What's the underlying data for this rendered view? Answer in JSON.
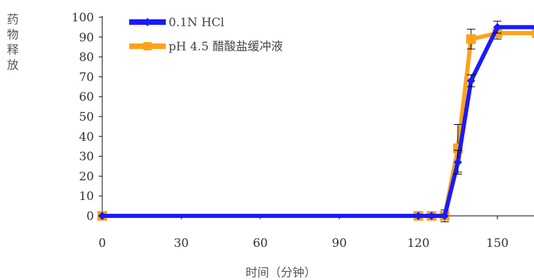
{
  "chart_data": {
    "type": "line",
    "title": "",
    "xlabel": "时间（分钟）",
    "ylabel": "药物释放",
    "xlim": [
      0,
      165
    ],
    "ylim": [
      0,
      100
    ],
    "x_ticks": [
      "0",
      "30",
      "60",
      "90",
      "120",
      "150"
    ],
    "y_ticks": [
      "0",
      "10",
      "20",
      "30",
      "40",
      "50",
      "60",
      "70",
      "80",
      "90",
      "100"
    ],
    "grid": false,
    "legend_position": "top-left",
    "series": [
      {
        "name": "0.1N HCl",
        "color": "#1a1aff",
        "marker": "diamond",
        "x": [
          0,
          120,
          125,
          130,
          135,
          140,
          150,
          165
        ],
        "y": [
          0,
          0,
          0,
          0,
          27,
          68,
          95,
          95
        ],
        "err": [
          0,
          0,
          0,
          0,
          6,
          3,
          3,
          0
        ]
      },
      {
        "name": "pH 4.5  醋酸盐缓冲液",
        "color": "#ffa21a",
        "marker": "square",
        "x": [
          0,
          120,
          125,
          130,
          135,
          140,
          150,
          165
        ],
        "y": [
          0,
          0,
          0,
          0,
          34,
          89,
          92,
          92
        ],
        "err": [
          0,
          0,
          0,
          3,
          12,
          5,
          3,
          0
        ]
      }
    ]
  }
}
